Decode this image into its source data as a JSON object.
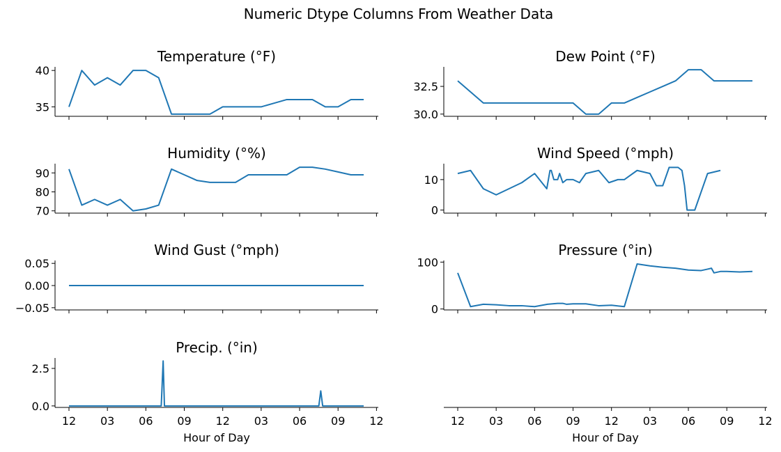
{
  "figure": {
    "title": "Numeric Dtype Columns From Weather Data"
  },
  "colors": {
    "line": "#1f77b4"
  },
  "chart_data": [
    {
      "type": "line",
      "title": "Temperature (°F)",
      "xlabel": "",
      "x": [
        0,
        1,
        2,
        3,
        4,
        5,
        6,
        7,
        8,
        9,
        10,
        11,
        12,
        13,
        14,
        15,
        16,
        17,
        18,
        19,
        20,
        21,
        22,
        23
      ],
      "values": [
        35,
        40,
        38,
        39,
        38,
        40,
        40,
        39,
        34,
        34,
        34,
        34,
        35,
        35,
        35,
        35,
        35.5,
        36,
        36,
        36,
        35,
        35,
        36,
        36
      ],
      "ylim": [
        33.7,
        40.4
      ],
      "yticks": [
        35,
        40
      ],
      "ytick_labels": [
        "35",
        "40"
      ]
    },
    {
      "type": "line",
      "title": "Dew Point (°F)",
      "xlabel": "",
      "x": [
        0,
        2,
        3,
        4,
        5,
        6,
        7,
        8,
        9,
        10,
        11,
        12,
        13,
        14,
        15,
        16,
        17,
        18,
        19,
        20,
        21,
        22,
        23
      ],
      "values": [
        33,
        31,
        31,
        31,
        31,
        31,
        31,
        31,
        31,
        30,
        30,
        31,
        31,
        31.5,
        32,
        32.5,
        33,
        34,
        34,
        33,
        33,
        33,
        33
      ],
      "ylim": [
        29.8,
        34.2
      ],
      "yticks": [
        30.0,
        32.5
      ],
      "ytick_labels": [
        "30.0",
        "32.5"
      ]
    },
    {
      "type": "line",
      "title": "Humidity (°%)",
      "xlabel": "",
      "x": [
        0,
        1,
        2,
        3,
        4,
        5,
        6,
        7,
        8,
        9,
        10,
        11,
        12,
        13,
        14,
        15,
        16,
        17,
        18,
        19,
        20,
        21,
        22,
        23
      ],
      "values": [
        92,
        73,
        76,
        73,
        76,
        70,
        71,
        73,
        92,
        89,
        86,
        85,
        85,
        85,
        89,
        89,
        89,
        89,
        93,
        93,
        92,
        90.5,
        89,
        89
      ],
      "ylim": [
        68.8,
        94.5
      ],
      "yticks": [
        70,
        80,
        90
      ],
      "ytick_labels": [
        "70",
        "80",
        "90"
      ]
    },
    {
      "type": "line",
      "title": "Wind Speed (°mph)",
      "xlabel": "",
      "x": [
        0,
        1,
        2,
        3,
        4,
        5,
        6,
        6.95,
        7.2,
        7.3,
        7.5,
        7.7,
        7.8,
        7.95,
        8.2,
        8.5,
        9,
        9.5,
        10,
        11,
        11.8,
        12.5,
        13,
        14,
        15,
        15.5,
        16,
        16.5,
        17.2,
        17.5,
        17.7,
        17.9,
        18.5,
        19.5,
        20.5
      ],
      "values": [
        12,
        13,
        7,
        5,
        7,
        9,
        12,
        7,
        13,
        13,
        10,
        10,
        10,
        12,
        9,
        10,
        10,
        9,
        12,
        13,
        9,
        10,
        10,
        13,
        12,
        8,
        8,
        14,
        14,
        13,
        8,
        0,
        0,
        12,
        13
      ],
      "ylim": [
        -1,
        15
      ],
      "yticks": [
        0,
        10
      ],
      "ytick_labels": [
        "0",
        "10"
      ]
    },
    {
      "type": "line",
      "title": "Wind Gust (°mph)",
      "xlabel": "",
      "x": [
        0,
        23
      ],
      "values": [
        0,
        0
      ],
      "ylim": [
        -0.055,
        0.055
      ],
      "yticks": [
        -0.05,
        0.0,
        0.05
      ],
      "ytick_labels": [
        "−0.05",
        "0.00",
        "0.05"
      ]
    },
    {
      "type": "line",
      "title": "Pressure (°in)",
      "xlabel": "",
      "x": [
        0,
        1,
        2,
        3,
        4,
        5,
        6,
        7,
        7.8,
        8.2,
        8.5,
        9,
        9.5,
        10,
        11,
        12,
        13,
        14,
        15,
        16,
        17,
        18,
        19,
        19.5,
        19.8,
        20,
        20.5,
        21,
        22,
        23
      ],
      "values": [
        77,
        5,
        10,
        9,
        7,
        7,
        5,
        10,
        12,
        12,
        10,
        11,
        11,
        11,
        7,
        8,
        5,
        96,
        92,
        89,
        87,
        83,
        82,
        85,
        87,
        77,
        80,
        80,
        79,
        80
      ],
      "ylim": [
        -2,
        102
      ],
      "yticks": [
        0,
        100
      ],
      "ytick_labels": [
        "0",
        "100"
      ]
    },
    {
      "type": "line",
      "title": "Precip. (°in)",
      "xlabel": "Hour of Day",
      "x": [
        0,
        7.2,
        7.35,
        7.45,
        7.5,
        8,
        19.5,
        19.65,
        19.8,
        20,
        23
      ],
      "values": [
        0,
        0,
        3,
        0,
        0,
        0,
        0,
        1,
        0,
        0,
        0
      ],
      "ylim": [
        -0.1,
        3.15
      ],
      "yticks": [
        0.0,
        2.5
      ],
      "ytick_labels": [
        "0.0",
        "2.5"
      ]
    },
    {
      "type": "line",
      "title": "",
      "xlabel": "Hour of Day",
      "x": [],
      "values": [],
      "ylim": [
        0,
        1
      ],
      "yticks": [],
      "ytick_labels": []
    }
  ],
  "x_axis": {
    "ticks": [
      0,
      3,
      6,
      9,
      12,
      15,
      18,
      21,
      24
    ],
    "tick_labels": [
      "12",
      "03",
      "06",
      "09",
      "12",
      "03",
      "06",
      "09",
      "12"
    ]
  }
}
